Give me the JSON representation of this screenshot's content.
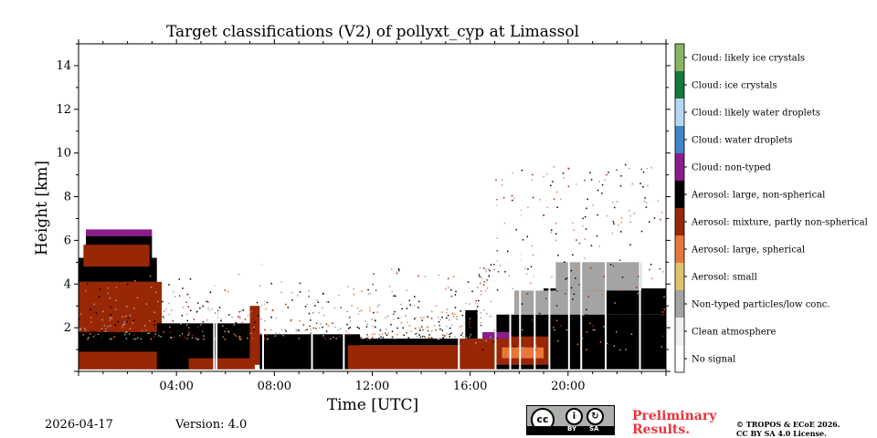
{
  "chart_data": {
    "type": "heatmap",
    "title": "Target classifications (V2) of pollyxt_cyp at Limassol",
    "xlabel": "Time [UTC]",
    "ylabel": "Height [km]",
    "xlim": [
      0,
      24
    ],
    "ylim": [
      0,
      15
    ],
    "x_ticks": [
      {
        "value": 4,
        "label": "04:00"
      },
      {
        "value": 8,
        "label": "08:00"
      },
      {
        "value": 12,
        "label": "12:00"
      },
      {
        "value": 16,
        "label": "16:00"
      },
      {
        "value": 20,
        "label": "20:00"
      }
    ],
    "y_ticks": [
      {
        "value": 2,
        "label": "2"
      },
      {
        "value": 4,
        "label": "4"
      },
      {
        "value": 6,
        "label": "6"
      },
      {
        "value": 8,
        "label": "8"
      },
      {
        "value": 10,
        "label": "10"
      },
      {
        "value": 12,
        "label": "12"
      },
      {
        "value": 14,
        "label": "14"
      }
    ],
    "classes": [
      {
        "label": "No signal",
        "color": "#ffffff"
      },
      {
        "label": "Clean atmosphere",
        "color": "#f0f0f0"
      },
      {
        "label": "Non-typed particles/low conc.",
        "color": "#a4a4a4"
      },
      {
        "label": "Aerosol: small",
        "color": "#dcc36a"
      },
      {
        "label": "Aerosol: large, spherical",
        "color": "#e9773b"
      },
      {
        "label": "Aerosol: mixture, partly non-spherical",
        "color": "#982706"
      },
      {
        "label": "Aerosol: large, non-spherical",
        "color": "#000000"
      },
      {
        "label": "Cloud: non-typed",
        "color": "#8a1c8c"
      },
      {
        "label": "Cloud: water droplets",
        "color": "#3d86c8"
      },
      {
        "label": "Cloud: likely water droplets",
        "color": "#b4d8f4"
      },
      {
        "label": "Cloud: ice crystals",
        "color": "#13783a"
      },
      {
        "label": "Cloud: likely ice crystals",
        "color": "#8ab663"
      }
    ],
    "regions": [
      {
        "class": 5,
        "x0": 0,
        "x1": 3.4,
        "y0": 0.1,
        "y1": 4.1
      },
      {
        "class": 6,
        "x0": 0,
        "x1": 3.2,
        "y0": 4.1,
        "y1": 5.2
      },
      {
        "class": 6,
        "x0": 0.3,
        "x1": 3.0,
        "y0": 5.2,
        "y1": 6.2
      },
      {
        "class": 5,
        "x0": 0.2,
        "x1": 2.9,
        "y0": 4.8,
        "y1": 5.8
      },
      {
        "class": 7,
        "x0": 0.3,
        "x1": 3.0,
        "y0": 6.2,
        "y1": 6.5
      },
      {
        "class": 6,
        "x0": 0,
        "x1": 5.5,
        "y0": 0.1,
        "y1": 1.8
      },
      {
        "class": 5,
        "x0": 0,
        "x1": 5.5,
        "y0": 0.1,
        "y1": 0.9
      },
      {
        "class": 6,
        "x0": 3.2,
        "x1": 7.0,
        "y0": 0.1,
        "y1": 2.2
      },
      {
        "class": 5,
        "x0": 4.5,
        "x1": 7.2,
        "y0": 0.1,
        "y1": 0.6
      },
      {
        "class": 5,
        "x0": 7.0,
        "x1": 7.4,
        "y0": 0.3,
        "y1": 3.0
      },
      {
        "class": 6,
        "x0": 7.4,
        "x1": 11.5,
        "y0": 0.1,
        "y1": 1.7
      },
      {
        "class": 5,
        "x0": 11.0,
        "x1": 15.6,
        "y0": 0.1,
        "y1": 1.2
      },
      {
        "class": 6,
        "x0": 11.0,
        "x1": 15.6,
        "y0": 1.2,
        "y1": 1.5
      },
      {
        "class": 5,
        "x0": 15.6,
        "x1": 17.0,
        "y0": 0.1,
        "y1": 1.5
      },
      {
        "class": 6,
        "x0": 15.8,
        "x1": 16.3,
        "y0": 1.5,
        "y1": 2.8
      },
      {
        "class": 6,
        "x0": 17.0,
        "x1": 24.0,
        "y0": 0.1,
        "y1": 2.6
      },
      {
        "class": 6,
        "x0": 19.0,
        "x1": 24.0,
        "y0": 2.6,
        "y1": 3.8
      },
      {
        "class": 5,
        "x0": 17.0,
        "x1": 19.2,
        "y0": 0.3,
        "y1": 1.6
      },
      {
        "class": 4,
        "x0": 17.3,
        "x1": 19.0,
        "y0": 0.6,
        "y1": 1.1
      },
      {
        "class": 7,
        "x0": 16.5,
        "x1": 17.6,
        "y0": 1.5,
        "y1": 1.8
      },
      {
        "class": 2,
        "x0": 17.8,
        "x1": 21.5,
        "y0": 2.6,
        "y1": 3.7
      },
      {
        "class": 2,
        "x0": 19.5,
        "x1": 23.0,
        "y0": 3.7,
        "y1": 5.0
      }
    ],
    "dropouts": [
      5.5,
      5.6,
      7.5,
      9.5,
      10.8,
      15.5,
      17.0,
      17.6,
      18.0,
      18.6,
      19.2,
      20.0,
      20.5,
      21.5,
      22.9
    ],
    "footer": {
      "date": "2026-04-17",
      "version": "Version: 4.0",
      "preliminary": [
        "Preliminary",
        "Results."
      ],
      "copyright": [
        "© TROPOS & ECoE 2026.",
        "CC BY SA 4.0 License."
      ],
      "badge": {
        "cc": "cc",
        "by": "BY",
        "sa": "SA"
      }
    }
  }
}
